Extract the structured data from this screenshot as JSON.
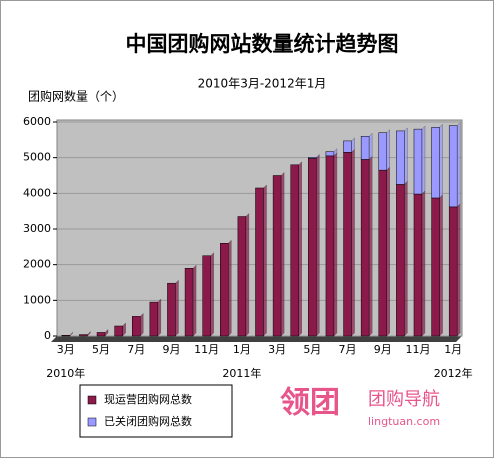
{
  "chart_data": {
    "type": "stacked_bar",
    "title": "中国团购网站数量统计趋势图",
    "subtitle": "2010年3月-2012年1月",
    "y_label": "团购网数量（个）",
    "categories": [
      "3月",
      null,
      "5月",
      null,
      "7月",
      null,
      "9月",
      null,
      "11月",
      null,
      "1月",
      null,
      "3月",
      null,
      "5月",
      null,
      "7月",
      null,
      "9月",
      null,
      "11月",
      null,
      "1月"
    ],
    "year_labels": [
      "2010年",
      "2011年",
      "2012年"
    ],
    "series": [
      {
        "name": "现运营团购网总数",
        "color": "#8b1a4a",
        "values": [
          20,
          40,
          100,
          280,
          550,
          950,
          1480,
          1900,
          2250,
          2600,
          3350,
          4150,
          4500,
          4800,
          4980,
          5050,
          5150,
          4950,
          4650,
          4250,
          3980,
          3870,
          3620
        ]
      },
      {
        "name": "已关闭团购网总数",
        "color": "#9999ff",
        "values": [
          0,
          0,
          0,
          0,
          0,
          0,
          0,
          0,
          0,
          0,
          0,
          0,
          0,
          0,
          30,
          120,
          320,
          650,
          1050,
          1500,
          1820,
          1980,
          2280
        ]
      }
    ],
    "ylim": [
      0,
      6000
    ],
    "yticks": [
      0,
      1000,
      2000,
      3000,
      4000,
      5000,
      6000
    ],
    "grid": true
  },
  "watermark": {
    "brand": "领团",
    "tagline": "团购导航",
    "url": "lingtuan.com"
  }
}
